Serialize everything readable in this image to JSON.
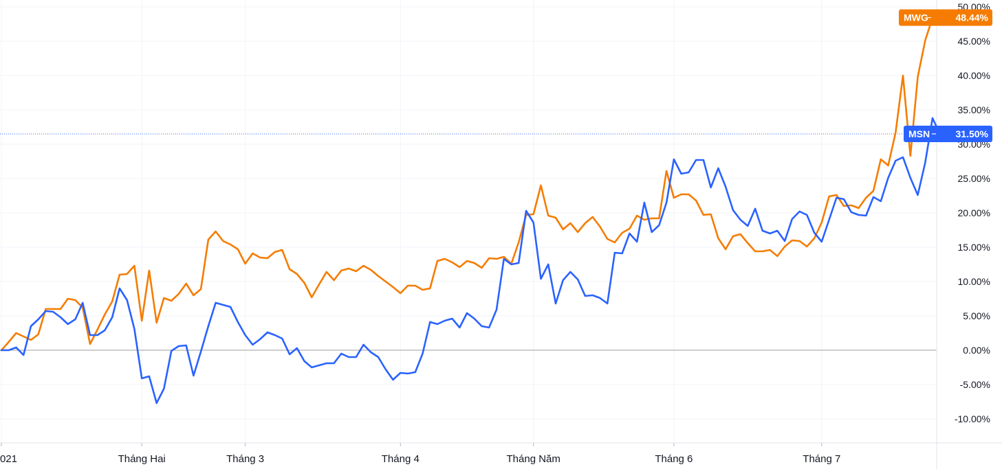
{
  "chart_data": {
    "type": "line",
    "title": "",
    "xlabel": "",
    "ylabel": "",
    "y_unit": "%",
    "ylim": [
      -13.5,
      50.5
    ],
    "y_ticks": [
      "50.00%",
      "45.00%",
      "40.00%",
      "35.00%",
      "30.00%",
      "25.00%",
      "20.00%",
      "15.00%",
      "10.00%",
      "5.00%",
      "0.00%",
      "-5.00%",
      "-10.00%"
    ],
    "y_tick_values": [
      50,
      45,
      40,
      35,
      30,
      25,
      20,
      15,
      10,
      5,
      0,
      -5,
      -10
    ],
    "x_ticks": [
      {
        "label": "021",
        "index": 0
      },
      {
        "label": "Tháng Hai",
        "index": 19
      },
      {
        "label": "Tháng 3",
        "index": 33
      },
      {
        "label": "Tháng 4",
        "index": 54
      },
      {
        "label": "Tháng Năm",
        "index": 72
      },
      {
        "label": "Tháng 6",
        "index": 91
      },
      {
        "label": "Tháng 7",
        "index": 111
      }
    ],
    "zero_line": true,
    "grid": true,
    "colors": {
      "MWG": "#f57c00",
      "MSN": "#2962ff",
      "zero_line": "#9e9e9e",
      "grid": "#f0f3fa",
      "dotted_line": "#2962ff"
    },
    "series": [
      {
        "name": "MWG",
        "last_label": "48.44%",
        "values": [
          0.0,
          1.2,
          2.5,
          2.0,
          1.5,
          2.3,
          6.0,
          6.0,
          6.0,
          7.5,
          7.3,
          6.2,
          0.9,
          3.0,
          5.2,
          7.1,
          11.0,
          11.1,
          12.3,
          4.3,
          11.6,
          4.0,
          7.6,
          7.2,
          8.2,
          9.7,
          8.0,
          8.9,
          16.1,
          17.3,
          15.9,
          15.4,
          14.7,
          12.6,
          14.1,
          13.5,
          13.4,
          14.3,
          14.6,
          11.8,
          11.1,
          9.8,
          7.7,
          9.6,
          11.4,
          10.2,
          11.6,
          11.9,
          11.5,
          12.3,
          11.7,
          10.8,
          10.0,
          9.2,
          8.3,
          9.4,
          9.4,
          8.8,
          9.0,
          13.0,
          13.3,
          12.8,
          12.1,
          13.0,
          12.7,
          12.0,
          13.4,
          13.3,
          13.6,
          12.6,
          15.7,
          19.7,
          19.8,
          24.0,
          19.6,
          19.3,
          17.6,
          18.5,
          17.2,
          18.5,
          19.4,
          18.0,
          16.2,
          15.7,
          17.1,
          17.7,
          19.6,
          19.0,
          19.2,
          19.2,
          26.1,
          22.2,
          22.7,
          22.7,
          21.8,
          19.7,
          19.8,
          16.3,
          14.7,
          16.6,
          16.9,
          15.6,
          14.4,
          14.4,
          14.6,
          13.7,
          15.1,
          16.0,
          15.9,
          15.1,
          16.3,
          18.6,
          22.4,
          22.6,
          21.0,
          21.1,
          20.7,
          22.2,
          23.2,
          27.8,
          26.9,
          31.7,
          40.0,
          28.3,
          39.8,
          45.1,
          48.44
        ]
      },
      {
        "name": "MSN",
        "last_label": "31.50%",
        "values": [
          0.0,
          0.0,
          0.4,
          -0.7,
          3.5,
          4.5,
          5.7,
          5.6,
          4.8,
          3.8,
          4.5,
          6.9,
          2.2,
          2.2,
          2.9,
          4.8,
          9.0,
          7.3,
          3.1,
          -4.1,
          -3.8,
          -7.7,
          -5.6,
          -0.1,
          0.6,
          0.7,
          -3.7,
          -0.2,
          3.5,
          6.9,
          6.6,
          6.3,
          4.1,
          2.2,
          0.8,
          1.6,
          2.6,
          2.2,
          1.7,
          -0.6,
          0.3,
          -1.6,
          -2.5,
          -2.2,
          -1.9,
          -1.9,
          -0.5,
          -1.0,
          -1.0,
          0.8,
          -0.3,
          -1.0,
          -2.8,
          -4.3,
          -3.3,
          -3.4,
          -3.2,
          -0.5,
          4.1,
          3.8,
          4.3,
          4.6,
          3.3,
          5.4,
          4.6,
          3.5,
          3.3,
          5.9,
          13.3,
          12.5,
          12.7,
          20.3,
          18.6,
          10.4,
          12.5,
          6.8,
          10.2,
          11.4,
          10.3,
          7.9,
          8.0,
          7.6,
          6.8,
          14.2,
          14.1,
          17.0,
          15.8,
          21.5,
          17.2,
          18.2,
          21.5,
          27.8,
          25.7,
          25.9,
          27.7,
          27.7,
          23.7,
          26.5,
          23.8,
          20.4,
          19.0,
          18.1,
          20.6,
          17.4,
          17.0,
          17.4,
          15.9,
          19.1,
          20.2,
          19.7,
          17.1,
          15.8,
          19.0,
          22.2,
          22.0,
          20.1,
          19.7,
          19.6,
          22.3,
          21.7,
          25.1,
          27.6,
          28.1,
          25.1,
          22.6,
          27.3,
          33.8,
          31.5
        ]
      }
    ]
  }
}
